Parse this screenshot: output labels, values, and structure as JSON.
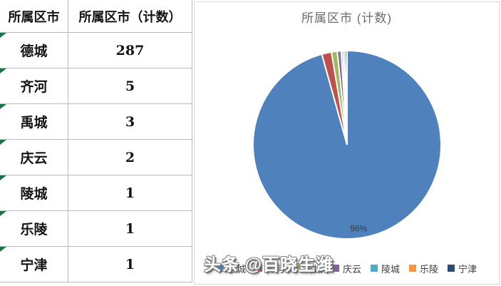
{
  "table": {
    "headers": [
      "所属区市",
      "所属区市（计数）"
    ],
    "rows": [
      {
        "name": "德城",
        "count": "287"
      },
      {
        "name": "齐河",
        "count": "5"
      },
      {
        "name": "禹城",
        "count": "3"
      },
      {
        "name": "庆云",
        "count": "2"
      },
      {
        "name": "陵城",
        "count": "1"
      },
      {
        "name": "乐陵",
        "count": "1"
      },
      {
        "name": "宁津",
        "count": "1"
      }
    ],
    "flag_triangle_color": "#1e7145",
    "border_color": "#b6bac9"
  },
  "chart_data": {
    "type": "pie",
    "title": "所属区市 (计数)",
    "categories": [
      "德城",
      "齐河",
      "禹城",
      "庆云",
      "陵城",
      "乐陵",
      "宁津"
    ],
    "values": [
      287,
      5,
      3,
      2,
      1,
      1,
      1
    ],
    "colors": [
      "#4F81BD",
      "#C0504D",
      "#9BBB59",
      "#8064A2",
      "#4BACC6",
      "#F79646",
      "#2C4D75"
    ],
    "data_labels": [
      {
        "category": "德城",
        "text": "96%"
      }
    ],
    "legend_position": "bottom",
    "start_angle_deg": 0,
    "direction": "clockwise",
    "slice_border_color": "#ffffff"
  },
  "watermark": {
    "text": "头条 @百晓生潍"
  }
}
